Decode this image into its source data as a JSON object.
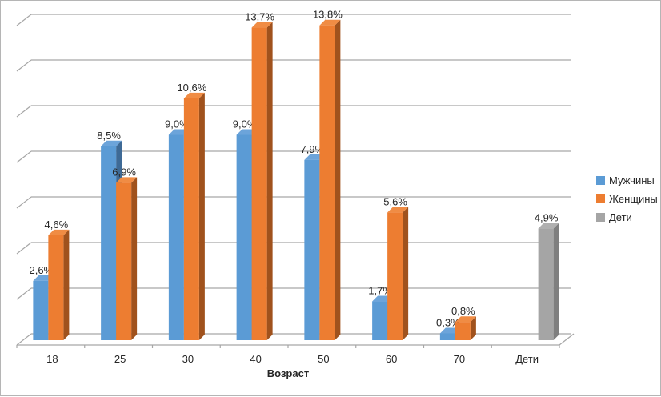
{
  "chart_data": {
    "type": "bar",
    "subtype": "3d-clustered-column",
    "title": "",
    "xlabel": "Возраст",
    "ylabel": "",
    "ylim": [
      0,
      14
    ],
    "grid_step": 2,
    "gridlines": true,
    "legend_position": "right",
    "data_labels_shown": true,
    "gridline_color": "#a6a6a6",
    "axis_text_color": "#262626",
    "categories": [
      "18",
      "25",
      "30",
      "40",
      "50",
      "60",
      "70",
      "Дети"
    ],
    "series": [
      {
        "name": "Мужчины",
        "color": "#5b9bd5",
        "color_top": "#6ca4da",
        "color_side": "#3e6a96",
        "values": [
          2.6,
          8.5,
          9.0,
          9.0,
          7.9,
          1.7,
          0.3,
          null
        ],
        "labels": [
          "2,6%",
          "8,5%",
          "9,0%",
          "9,0%",
          "7,9%",
          "1,7%",
          "0,3%",
          null
        ]
      },
      {
        "name": "Женщины",
        "color": "#ed7d31",
        "color_top": "#f08c44",
        "color_side": "#a0521d",
        "values": [
          4.6,
          6.9,
          10.6,
          13.7,
          13.8,
          5.6,
          0.8,
          null
        ],
        "labels": [
          "4,6%",
          "6,9%",
          "10,6%",
          "13,7%",
          "13,8%",
          "5,6%",
          "0,8%",
          null
        ]
      },
      {
        "name": "Дети",
        "color": "#a5a5a5",
        "color_top": "#b0b0b0",
        "color_side": "#7f7f7f",
        "values": [
          null,
          null,
          null,
          null,
          null,
          null,
          null,
          4.9
        ],
        "labels": [
          null,
          null,
          null,
          null,
          null,
          null,
          null,
          "4,9%"
        ]
      }
    ]
  }
}
